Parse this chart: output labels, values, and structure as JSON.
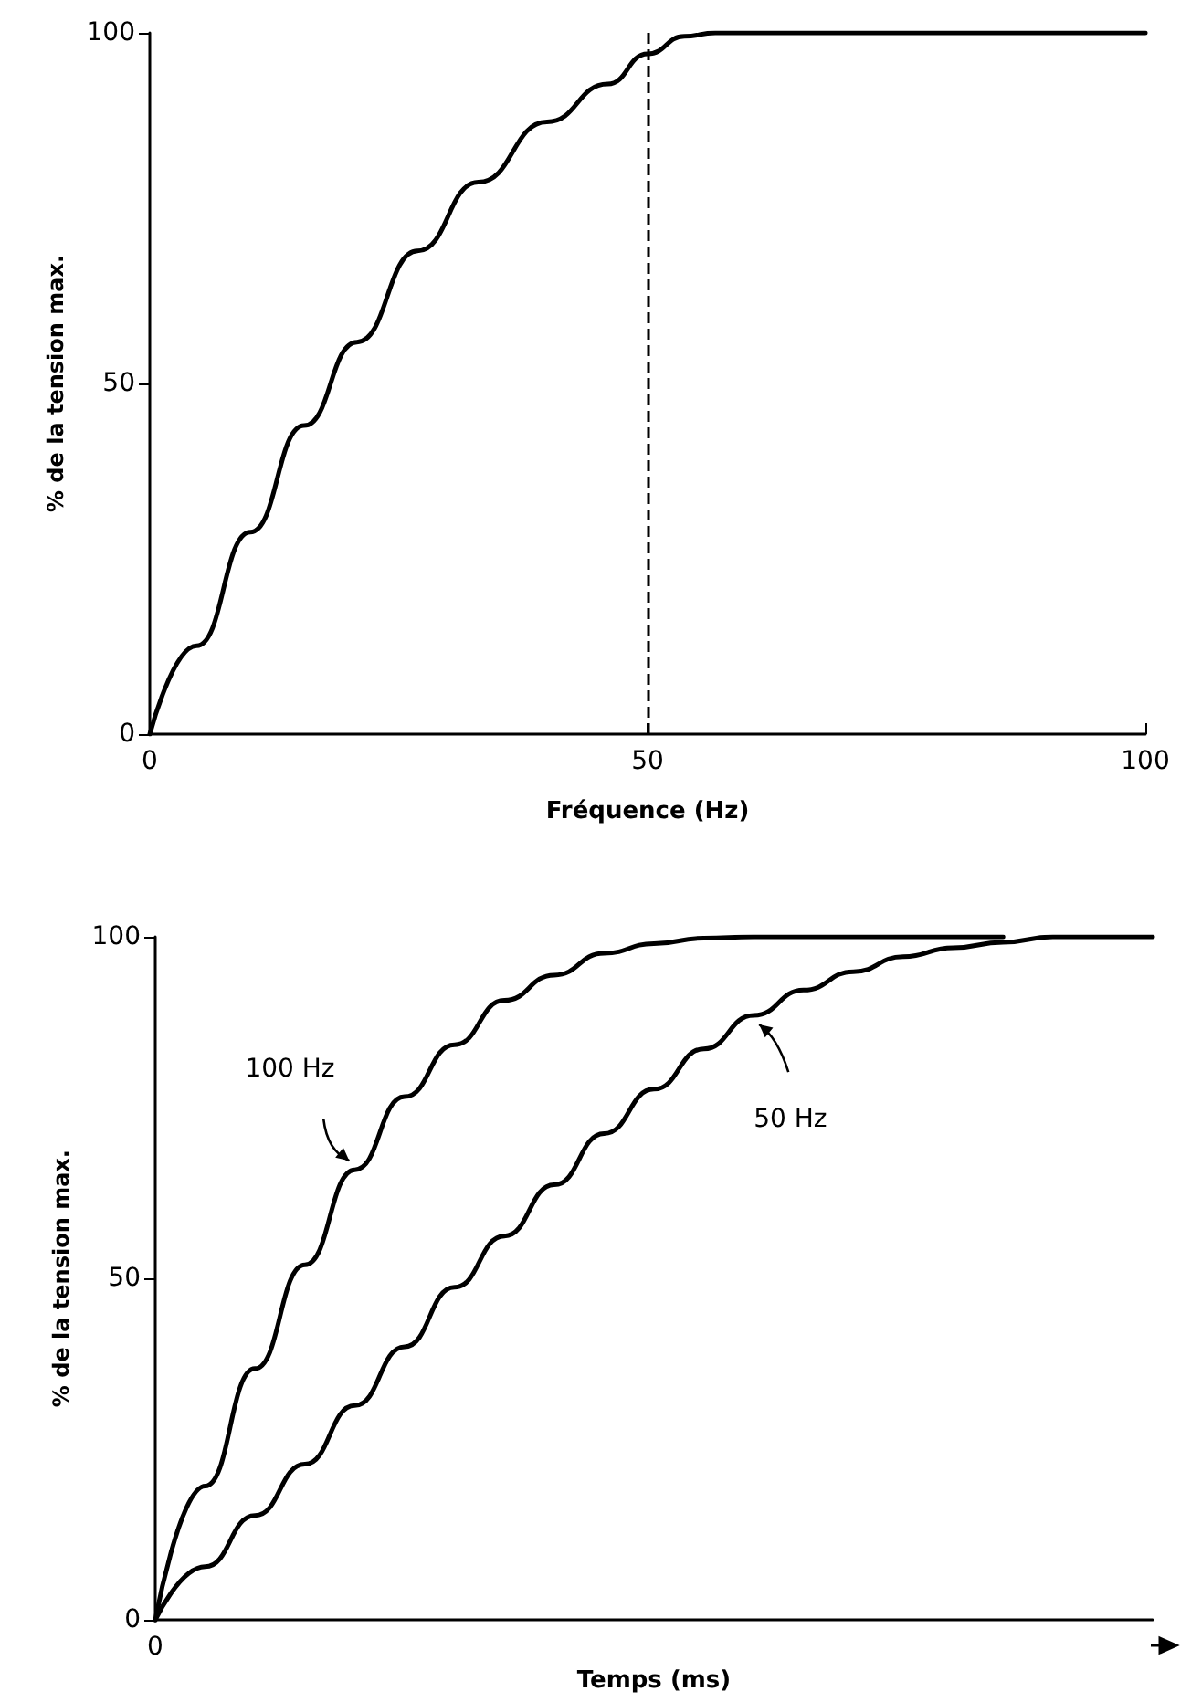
{
  "chart_data": [
    {
      "type": "line",
      "xlabel": "Fréquence (Hz)",
      "ylabel": "% de la tension max.",
      "x": [
        0,
        4.7,
        10.1,
        15.5,
        20.8,
        26.9,
        33,
        39.9,
        46,
        50,
        53.7,
        56.8,
        60,
        70,
        80,
        90,
        100
      ],
      "series": [
        {
          "color": "#000000",
          "values": [
            0,
            12.6,
            28.8,
            44,
            55.9,
            68.9,
            78.7,
            87.3,
            92.7,
            97,
            99.5,
            100,
            100,
            100,
            100,
            100,
            100
          ]
        }
      ],
      "xlim": [
        0,
        100
      ],
      "xticks": [
        0,
        50,
        100
      ],
      "ylim": [
        0,
        100
      ],
      "yticks": [
        0,
        50,
        100
      ],
      "ref_lines": [
        {
          "axis": "x",
          "value": 50,
          "line_style": "dashed",
          "color": "#000000"
        }
      ]
    },
    {
      "type": "line",
      "xlabel": "Temps (ms)",
      "ylabel": "% de la tension max.",
      "categories": [
        "0",
        null,
        null,
        null,
        null,
        null,
        null,
        null,
        null,
        null,
        null,
        null,
        null,
        null,
        null,
        null,
        null,
        null,
        null,
        null,
        null
      ],
      "series": [
        {
          "name": "100 Hz",
          "color": "#000000",
          "values": [
            0,
            19.6,
            36.8,
            52,
            65.9,
            76.6,
            84.2,
            90.7,
            94.4,
            97.6,
            99,
            99.8,
            100,
            100,
            100,
            100,
            100,
            100,
            null,
            null,
            null
          ]
        },
        {
          "name": "50 Hz",
          "color": "#000000",
          "values": [
            0,
            7.8,
            15.3,
            22.8,
            31.4,
            40,
            48.7,
            56.2,
            63.7,
            71.2,
            77.7,
            83.6,
            88.5,
            92.2,
            94.9,
            97.1,
            98.4,
            99.2,
            100,
            100,
            100
          ]
        }
      ],
      "ylim": [
        0,
        100
      ],
      "yticks": [
        0,
        50,
        100
      ]
    }
  ]
}
